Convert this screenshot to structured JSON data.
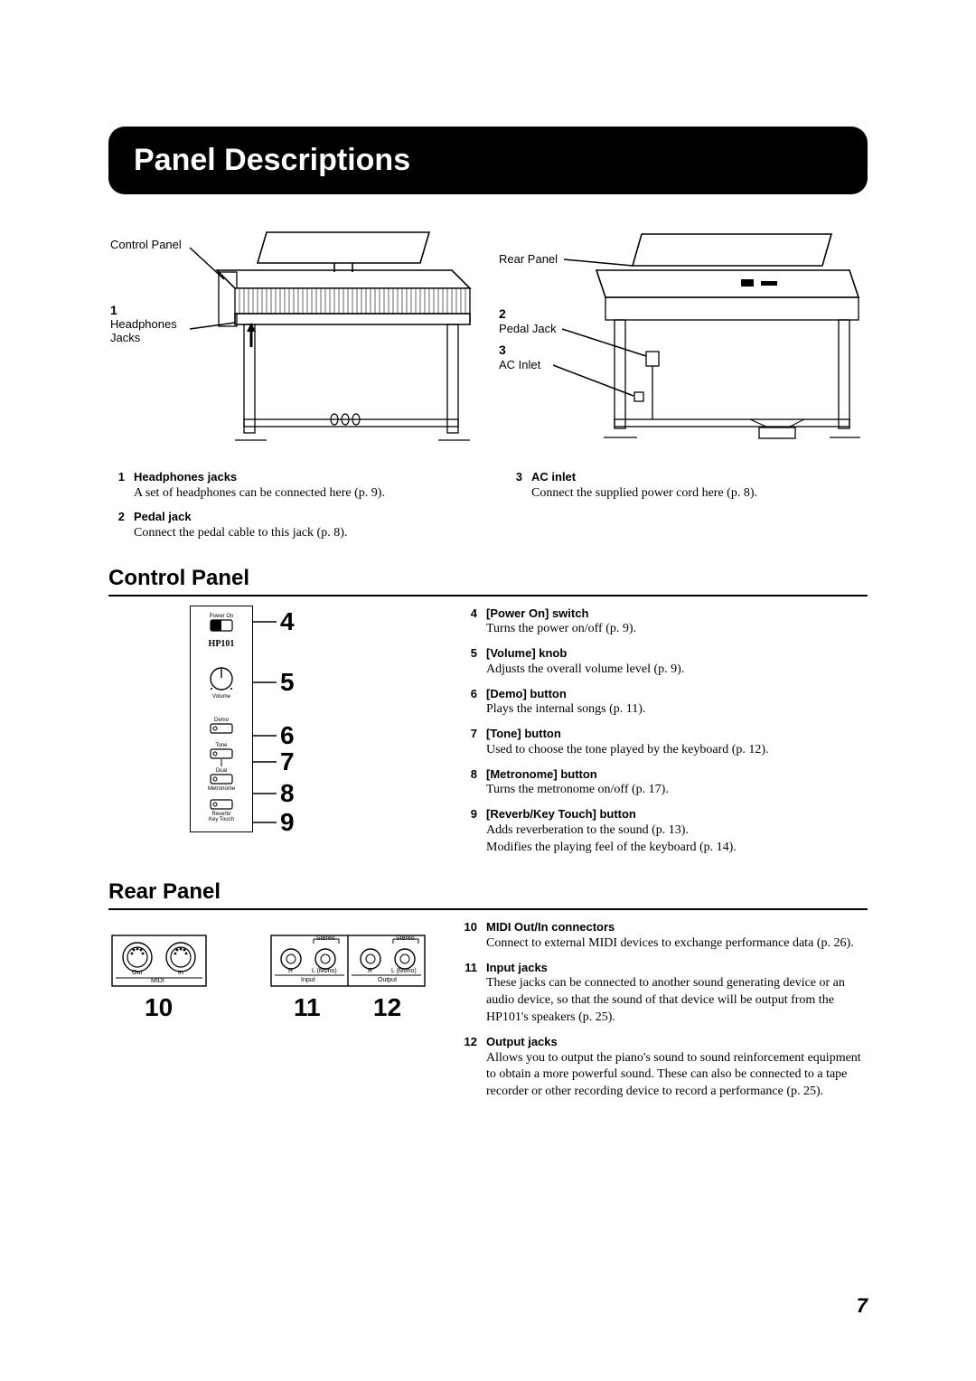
{
  "page_title": "Panel Descriptions",
  "page_number": "7",
  "diagrams": {
    "front": {
      "control_panel_label": "Control Panel",
      "headphones_num": "1",
      "headphones_label_l1": "Headphones",
      "headphones_label_l2": "Jacks"
    },
    "rear": {
      "rear_panel_label": "Rear Panel",
      "pedal_num": "2",
      "pedal_label": "Pedal Jack",
      "ac_num": "3",
      "ac_label": "AC Inlet"
    }
  },
  "notes_row1_left": [
    {
      "num": "1",
      "name": "Headphones jacks",
      "desc": "A set of headphones can be connected here (p. 9)."
    },
    {
      "num": "2",
      "name": "Pedal jack",
      "desc": "Connect the pedal cable to this jack (p. 8)."
    }
  ],
  "notes_row1_right": [
    {
      "num": "3",
      "name": "AC inlet",
      "desc": "Connect the supplied power cord here (p. 8)."
    }
  ],
  "control_panel": {
    "heading": "Control Panel",
    "labels": {
      "power_on": "Power On",
      "model": "HP101",
      "volume": "Volume",
      "demo": "Demo",
      "tone": "Tone",
      "dual": "Dual",
      "metronome": "Metronome",
      "reverb": "Reverb/\nKey Touch"
    },
    "callouts": [
      "4",
      "5",
      "6",
      "7",
      "8",
      "9"
    ],
    "items": [
      {
        "num": "4",
        "name": "[Power On] switch",
        "desc": "Turns the power on/off (p. 9)."
      },
      {
        "num": "5",
        "name": "[Volume] knob",
        "desc": "Adjusts the overall volume level (p. 9)."
      },
      {
        "num": "6",
        "name": "[Demo] button",
        "desc": "Plays the internal songs (p. 11)."
      },
      {
        "num": "7",
        "name": "[Tone] button",
        "desc": "Used to choose the tone played by the keyboard (p. 12)."
      },
      {
        "num": "8",
        "name": "[Metronome] button",
        "desc": "Turns the metronome on/off (p. 17)."
      },
      {
        "num": "9",
        "name": "[Reverb/Key Touch] button",
        "desc": "Adds reverberation to the sound (p. 13).\nModifies the playing feel of the keyboard (p. 14)."
      }
    ]
  },
  "rear_panel": {
    "heading": "Rear Panel",
    "midi_out": "Out",
    "midi_in": "In",
    "midi": "MIDI",
    "stereo": "Stereo",
    "r": "R",
    "lmono": "L (Mono)",
    "input": "Input",
    "output": "Output",
    "callouts": [
      "10",
      "11",
      "12"
    ],
    "items": [
      {
        "num": "10",
        "name": "MIDI Out/In connectors",
        "desc": "Connect to external MIDI devices to exchange performance data (p. 26)."
      },
      {
        "num": "11",
        "name": "Input jacks",
        "desc": "These jacks can be connected to another sound generating device or an audio device, so that the sound of that device will be output from the HP101's speakers (p. 25)."
      },
      {
        "num": "12",
        "name": "Output jacks",
        "desc": "Allows you to output the piano's sound to sound reinforcement equipment to obtain a more powerful sound. These can also be connected to a tape recorder or other recording device to record a performance (p. 25)."
      }
    ]
  }
}
